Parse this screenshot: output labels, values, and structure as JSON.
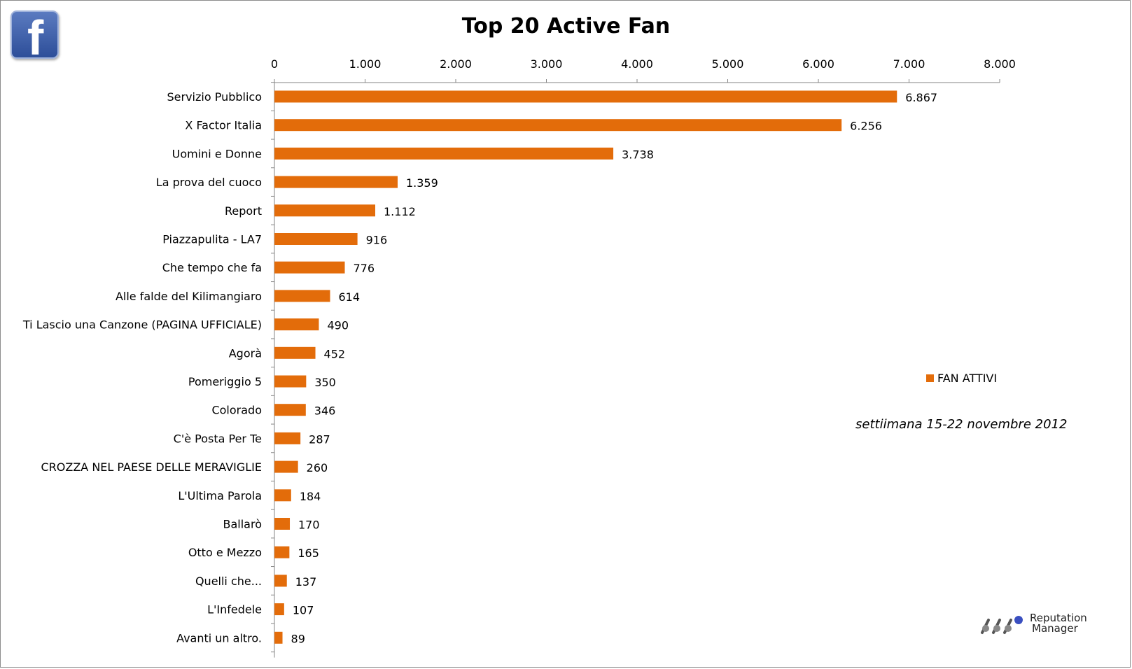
{
  "chart_data": {
    "type": "bar",
    "orientation": "horizontal",
    "title": "Top 20 Active Fan",
    "categories": [
      "Servizio Pubblico",
      "X Factor Italia",
      "Uomini e Donne",
      "La prova del cuoco",
      "Report",
      "Piazzapulita - LA7",
      "Che tempo che fa",
      "Alle falde del Kilimangiaro",
      "Ti Lascio una Canzone (PAGINA UFFICIALE)",
      "Agorà",
      "Pomeriggio 5",
      "Colorado",
      "C'è Posta Per Te",
      "CROZZA NEL PAESE DELLE MERAVIGLIE",
      "L'Ultima Parola",
      "Ballarò",
      "Otto e Mezzo",
      "Quelli che...",
      "L'Infedele",
      "Avanti un altro."
    ],
    "series": [
      {
        "name": "FAN ATTIVI",
        "color": "#E36C0A",
        "values": [
          6867,
          6256,
          3738,
          1359,
          1112,
          916,
          776,
          614,
          490,
          452,
          350,
          346,
          287,
          260,
          184,
          170,
          165,
          137,
          107,
          89
        ],
        "value_labels": [
          "6.867",
          "6.256",
          "3.738",
          "1.359",
          "1.112",
          "916",
          "776",
          "614",
          "490",
          "452",
          "350",
          "346",
          "287",
          "260",
          "184",
          "170",
          "165",
          "137",
          "107",
          "89"
        ]
      }
    ],
    "xlim": [
      0,
      8000
    ],
    "xticks": [
      0,
      1000,
      2000,
      3000,
      4000,
      5000,
      6000,
      7000,
      8000
    ],
    "xtick_labels": [
      "0",
      "1.000",
      "2.000",
      "3.000",
      "4.000",
      "5.000",
      "6.000",
      "7.000",
      "8.000"
    ],
    "x_axis_position": "top",
    "grid": false,
    "legend": {
      "position": "right",
      "label": "FAN ATTIVI"
    },
    "annotation": "settiimana 15-22 novembre 2012"
  },
  "branding": {
    "facebook_icon": "facebook-f-icon",
    "company_line1": "Reputation",
    "company_line2": "Manager",
    "company_icon": "reputation-manager-logo-icon"
  }
}
